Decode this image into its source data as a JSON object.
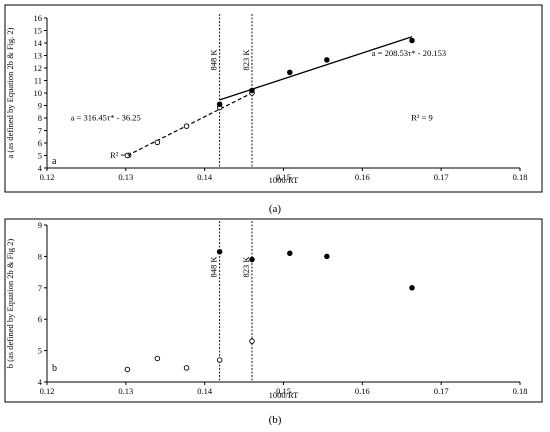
{
  "chart_data": [
    {
      "type": "scatter",
      "panel_letter": "a",
      "caption": "(a)",
      "xlabel": "1000/RT",
      "ylabel": "a (as defined by Equation 2b & Fig. 2)",
      "xlim": [
        0.12,
        0.18
      ],
      "ylim": [
        4,
        16
      ],
      "xticks": [
        "0.12",
        "0.13",
        "0.14",
        "0.15",
        "0.16",
        "0.17",
        "0.18"
      ],
      "yticks": [
        "4",
        "5",
        "6",
        "7",
        "8",
        "9",
        "10",
        "11",
        "12",
        "13",
        "14",
        "15",
        "16"
      ],
      "series": [
        {
          "marker": "open",
          "x": [
            0.1302,
            0.134,
            0.1377,
            0.1419,
            0.146
          ],
          "y": [
            5.0,
            6.05,
            7.35,
            8.85,
            10.0
          ]
        },
        {
          "marker": "filled",
          "x": [
            0.1419,
            0.146,
            0.1508,
            0.1555,
            0.1663
          ],
          "y": [
            9.1,
            10.2,
            11.65,
            12.65,
            14.2
          ]
        }
      ],
      "fit_lines": [
        {
          "style": "dashed",
          "x": [
            0.1302,
            0.146
          ],
          "y": [
            5.0,
            10.0
          ]
        },
        {
          "style": "solid",
          "x": [
            0.1419,
            0.1663
          ],
          "y": [
            9.45,
            14.5
          ]
        }
      ],
      "vertical_lines": [
        {
          "x": 0.1419,
          "label": "848 K"
        },
        {
          "x": 0.146,
          "label": "823 K"
        }
      ],
      "annotations": [
        {
          "text": "a = 316.45τ* - 36.25",
          "x": 0.123,
          "y": 7.8
        },
        {
          "text": "R² = 9",
          "x": 0.128,
          "y": 4.8
        },
        {
          "text": "a = 208.53τ* - 20.153",
          "x": 0.1612,
          "y": 12.95
        },
        {
          "text": "R² = 9",
          "x": 0.1662,
          "y": 7.8
        }
      ]
    },
    {
      "type": "scatter",
      "panel_letter": "b",
      "caption": "(b)",
      "xlabel": "1000/RT",
      "ylabel": "b (as defined by Equation 2b & Fig 2)",
      "xlim": [
        0.12,
        0.18
      ],
      "ylim": [
        4,
        9
      ],
      "xticks": [
        "0.12",
        "0.13",
        "0.14",
        "0.15",
        "0.16",
        "0.17",
        "0.18"
      ],
      "yticks": [
        "4",
        "5",
        "6",
        "7",
        "8",
        "9"
      ],
      "series": [
        {
          "marker": "open",
          "x": [
            0.1302,
            0.134,
            0.1377,
            0.1419,
            0.146
          ],
          "y": [
            4.4,
            4.75,
            4.45,
            4.7,
            5.3
          ]
        },
        {
          "marker": "filled",
          "x": [
            0.1419,
            0.146,
            0.1508,
            0.1555,
            0.1663
          ],
          "y": [
            8.15,
            7.9,
            8.1,
            8.0,
            7.0
          ]
        }
      ],
      "vertical_lines": [
        {
          "x": 0.1419,
          "label": "848 K"
        },
        {
          "x": 0.146,
          "label": "823 K"
        }
      ],
      "annotations": []
    }
  ]
}
